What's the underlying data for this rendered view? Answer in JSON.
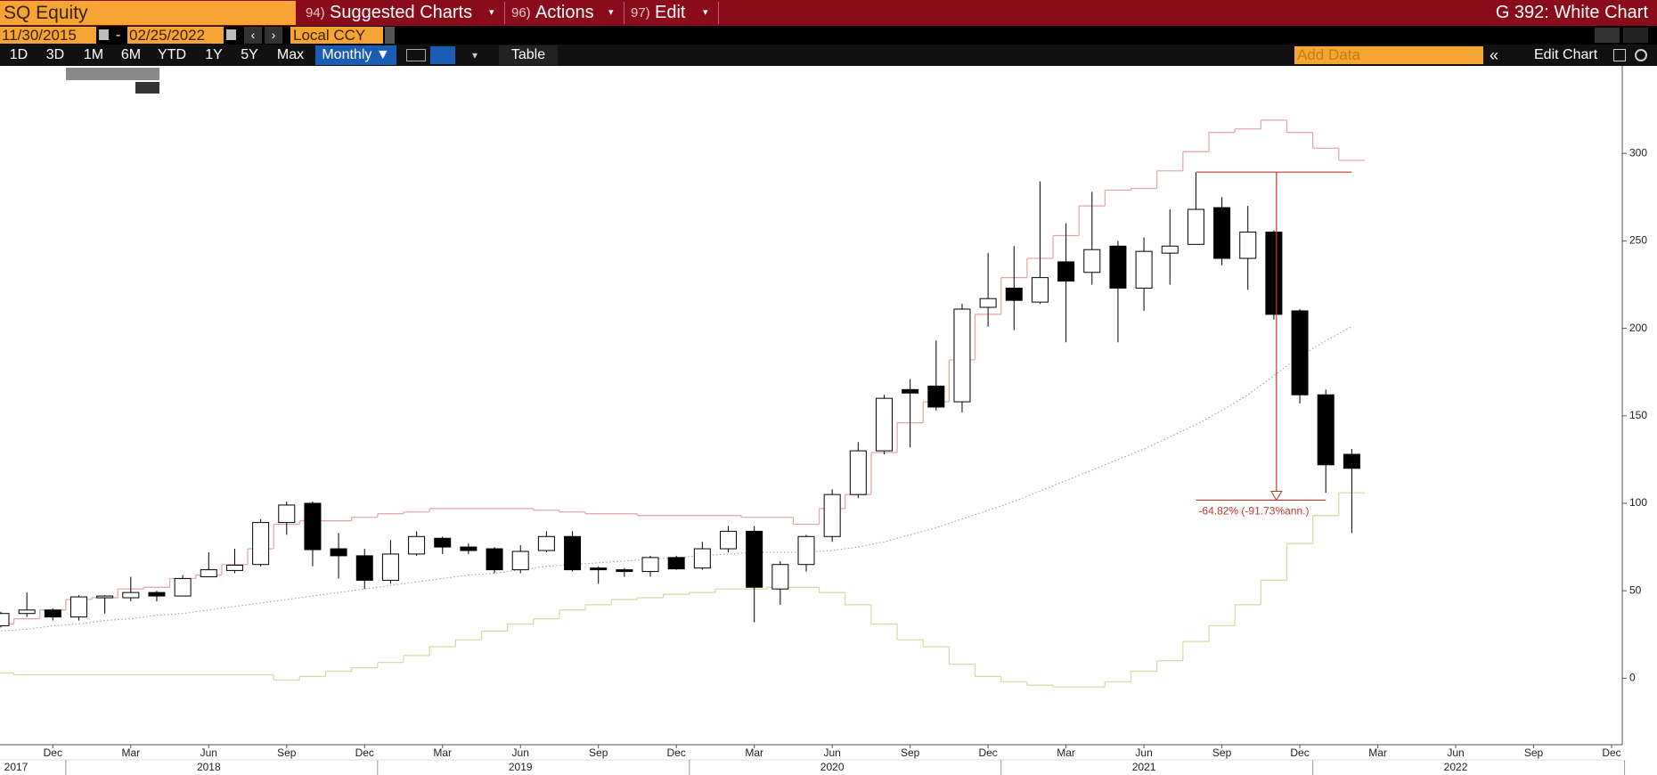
{
  "ui": {
    "security": "SQ Equity",
    "menus": [
      {
        "num": "94)",
        "label": "Suggested Charts"
      },
      {
        "num": "96)",
        "label": "Actions"
      },
      {
        "num": "97)",
        "label": "Edit"
      }
    ],
    "function": "G 392: White Chart",
    "start_date": "11/30/2015",
    "date_sep": "-",
    "end_date": "02/25/2022",
    "currency": "Local CCY",
    "periods": [
      "1D",
      "3D",
      "1M",
      "6M",
      "YTD",
      "1Y",
      "5Y",
      "Max"
    ],
    "frequency": "Monthly ▼",
    "table": "Table",
    "add_data": "Add Data",
    "edit_chart": "Edit Chart"
  },
  "chart_data": {
    "type": "candlestick",
    "x": [
      "2017-10",
      "2017-11",
      "2017-12",
      "2018-01",
      "2018-02",
      "2018-03",
      "2018-04",
      "2018-05",
      "2018-06",
      "2018-07",
      "2018-08",
      "2018-09",
      "2018-10",
      "2018-11",
      "2018-12",
      "2019-01",
      "2019-02",
      "2019-03",
      "2019-04",
      "2019-05",
      "2019-06",
      "2019-07",
      "2019-08",
      "2019-09",
      "2019-10",
      "2019-11",
      "2019-12",
      "2020-01",
      "2020-02",
      "2020-03",
      "2020-04",
      "2020-05",
      "2020-06",
      "2020-07",
      "2020-08",
      "2020-09",
      "2020-10",
      "2020-11",
      "2020-12",
      "2021-01",
      "2021-02",
      "2021-03",
      "2021-04",
      "2021-05",
      "2021-06",
      "2021-07",
      "2021-08",
      "2021-09",
      "2021-10",
      "2021-11",
      "2021-12",
      "2022-01",
      "2022-02"
    ],
    "open": [
      30,
      37,
      39,
      35,
      46,
      46,
      49,
      47,
      58,
      61.6,
      65,
      89,
      100,
      74,
      70,
      56,
      71,
      80,
      75,
      74,
      62,
      73,
      81,
      63,
      62,
      61,
      69,
      63,
      74,
      84,
      51,
      65,
      81,
      105,
      130,
      165,
      167,
      158,
      212,
      223,
      215,
      238,
      232,
      247,
      223,
      243,
      248,
      269,
      240,
      255,
      210,
      162,
      128
    ],
    "high": [
      38,
      49,
      40,
      47.5,
      47.5,
      58,
      50,
      59,
      72,
      74,
      91,
      101,
      101,
      83,
      74,
      79,
      84,
      81,
      77,
      75,
      76,
      84,
      84,
      64,
      63,
      70,
      70,
      78,
      87,
      87,
      67,
      82,
      108,
      135,
      162,
      171,
      193,
      214,
      243,
      247,
      284,
      260,
      278,
      250,
      252,
      268,
      289,
      275,
      270,
      256,
      211,
      165,
      131
    ],
    "low": [
      29,
      35,
      33,
      33,
      37,
      44,
      44,
      47,
      58,
      60,
      64,
      82,
      64,
      57,
      51,
      54,
      70,
      71,
      71,
      60,
      60,
      72,
      61,
      54,
      58,
      58,
      62,
      62,
      72,
      32,
      42,
      61,
      78,
      103,
      128,
      132,
      153,
      152,
      201,
      199,
      214,
      192,
      225,
      192,
      210,
      225,
      248,
      236,
      222,
      205,
      157,
      106,
      83
    ],
    "close": [
      37,
      39,
      35,
      46.5,
      47,
      49,
      47,
      57,
      62,
      64.6,
      89,
      99,
      73.5,
      70,
      56,
      71,
      81,
      75,
      73,
      62,
      72.5,
      81,
      62,
      62,
      61,
      69,
      62.5,
      74,
      84,
      52,
      65,
      81,
      105,
      130,
      160,
      163,
      155,
      211,
      217,
      216,
      229,
      227,
      245,
      223,
      244,
      247,
      268,
      240,
      255,
      208,
      162,
      122,
      120
    ],
    "up_color": "#ffffff",
    "down_color": "#000000",
    "upper_band": {
      "color": "#e6a3a3",
      "values": [
        31,
        34,
        39,
        45,
        46,
        51,
        52,
        57,
        59,
        65,
        74,
        88,
        90,
        90,
        92,
        94,
        95,
        97,
        97,
        97,
        97,
        96,
        95,
        94,
        94,
        93,
        93,
        93,
        93,
        92,
        92,
        88,
        97,
        105,
        129,
        146,
        158,
        182,
        208,
        229,
        240,
        253,
        270,
        279,
        280,
        290,
        301,
        312,
        314,
        319,
        312,
        303,
        296
      ]
    },
    "lower_band": {
      "color": "#d6d9a0",
      "values": [
        3,
        2,
        2,
        2,
        2,
        2,
        2,
        2,
        2,
        2,
        2,
        -1,
        1,
        4,
        6,
        9,
        13,
        18,
        22,
        27,
        31,
        34,
        39,
        42,
        45,
        46,
        48,
        49,
        51,
        51,
        52,
        52,
        49,
        42,
        31,
        22,
        18,
        8,
        1,
        -2,
        -4,
        -5,
        -5,
        -2,
        4,
        10,
        21,
        30,
        42,
        56,
        77,
        93,
        106
      ]
    },
    "moving_average": {
      "color": "#9a9a9a",
      "values": [
        27,
        28,
        30,
        31,
        33,
        34,
        36,
        37,
        39,
        41,
        43,
        45,
        47,
        49,
        51,
        53,
        55,
        57,
        59,
        60,
        62,
        64,
        65,
        66,
        67,
        68,
        69,
        70,
        71,
        72,
        72,
        72,
        73,
        75,
        78,
        82,
        86,
        91,
        96,
        101,
        107,
        113,
        119,
        125,
        131,
        138,
        145,
        153,
        162,
        173,
        184,
        193,
        201
      ]
    },
    "measure": {
      "text": "-64.82% (-91.73%ann.)",
      "from": 289.3,
      "to": 101.8,
      "x_start": "2021-08",
      "x_end": "2022-02",
      "color": "#c0392b"
    },
    "xlim": [
      "2017-10",
      "2022-12"
    ],
    "xticks": [
      {
        "value": "2017-12",
        "label": "Dec"
      },
      {
        "value": "2018-03",
        "label": "Mar"
      },
      {
        "value": "2018-06",
        "label": "Jun"
      },
      {
        "value": "2018-09",
        "label": "Sep"
      },
      {
        "value": "2018-12",
        "label": "Dec"
      },
      {
        "value": "2019-03",
        "label": "Mar"
      },
      {
        "value": "2019-06",
        "label": "Jun"
      },
      {
        "value": "2019-09",
        "label": "Sep"
      },
      {
        "value": "2019-12",
        "label": "Dec"
      },
      {
        "value": "2020-03",
        "label": "Mar"
      },
      {
        "value": "2020-06",
        "label": "Jun"
      },
      {
        "value": "2020-09",
        "label": "Sep"
      },
      {
        "value": "2020-12",
        "label": "Dec"
      },
      {
        "value": "2021-03",
        "label": "Mar"
      },
      {
        "value": "2021-06",
        "label": "Jun"
      },
      {
        "value": "2021-09",
        "label": "Sep"
      },
      {
        "value": "2021-12",
        "label": "Dec"
      },
      {
        "value": "2022-03",
        "label": "Mar"
      },
      {
        "value": "2022-06",
        "label": "Jun"
      },
      {
        "value": "2022-09",
        "label": "Sep"
      },
      {
        "value": "2022-12",
        "label": "Dec"
      }
    ],
    "year_ticks": [
      {
        "value": "2017-10",
        "label": "2017"
      },
      {
        "value": "2018-06",
        "label": "2018"
      },
      {
        "value": "2019-06",
        "label": "2019"
      },
      {
        "value": "2020-06",
        "label": "2020"
      },
      {
        "value": "2021-06",
        "label": "2021"
      },
      {
        "value": "2022-06",
        "label": "2022"
      }
    ],
    "ylim": [
      -38,
      350
    ],
    "yticks": [
      0,
      50,
      100,
      150,
      200,
      250,
      300
    ],
    "grid": false
  }
}
